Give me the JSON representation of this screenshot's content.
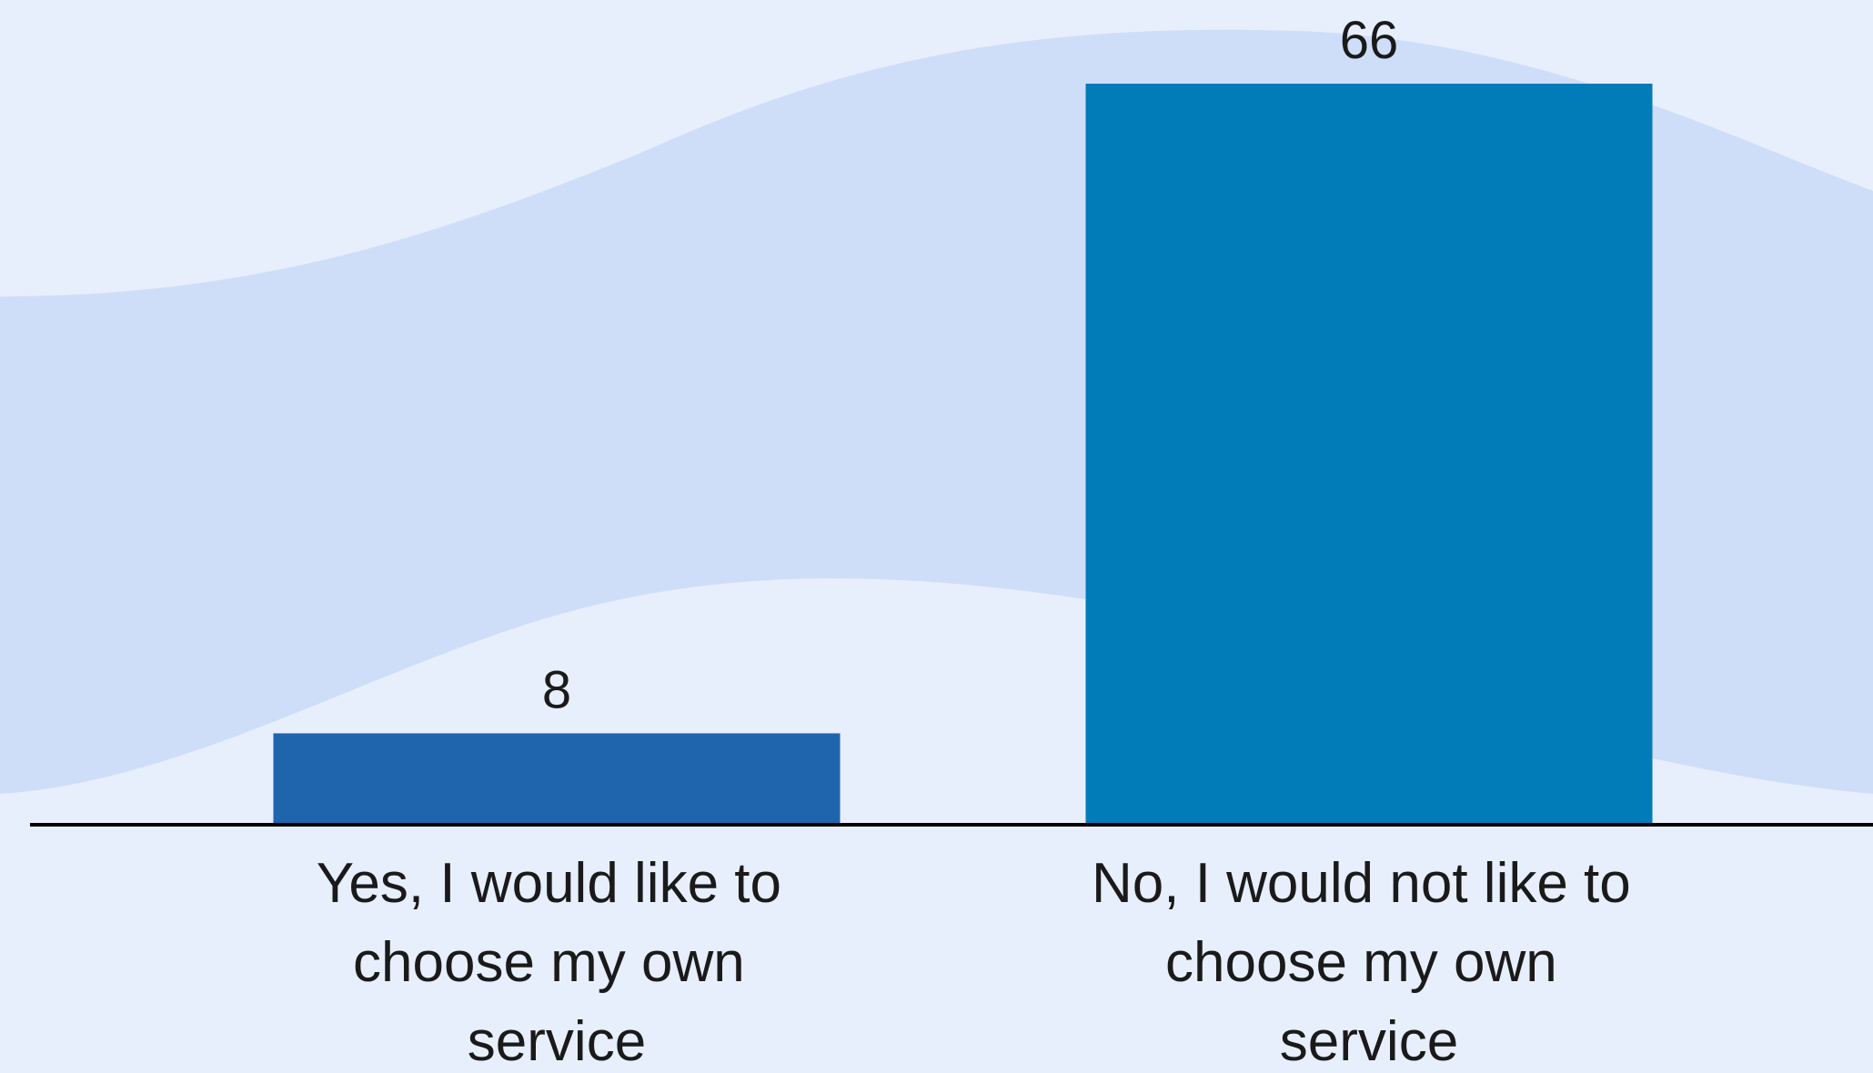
{
  "chart_data": {
    "type": "bar",
    "categories": [
      "Yes, I would like to choose my own service",
      "No, I would not like to choose my own service"
    ],
    "series": [
      {
        "values": [
          8,
          66
        ],
        "colors": [
          "#1f65ad",
          "#027bb9"
        ]
      }
    ]
  }
}
